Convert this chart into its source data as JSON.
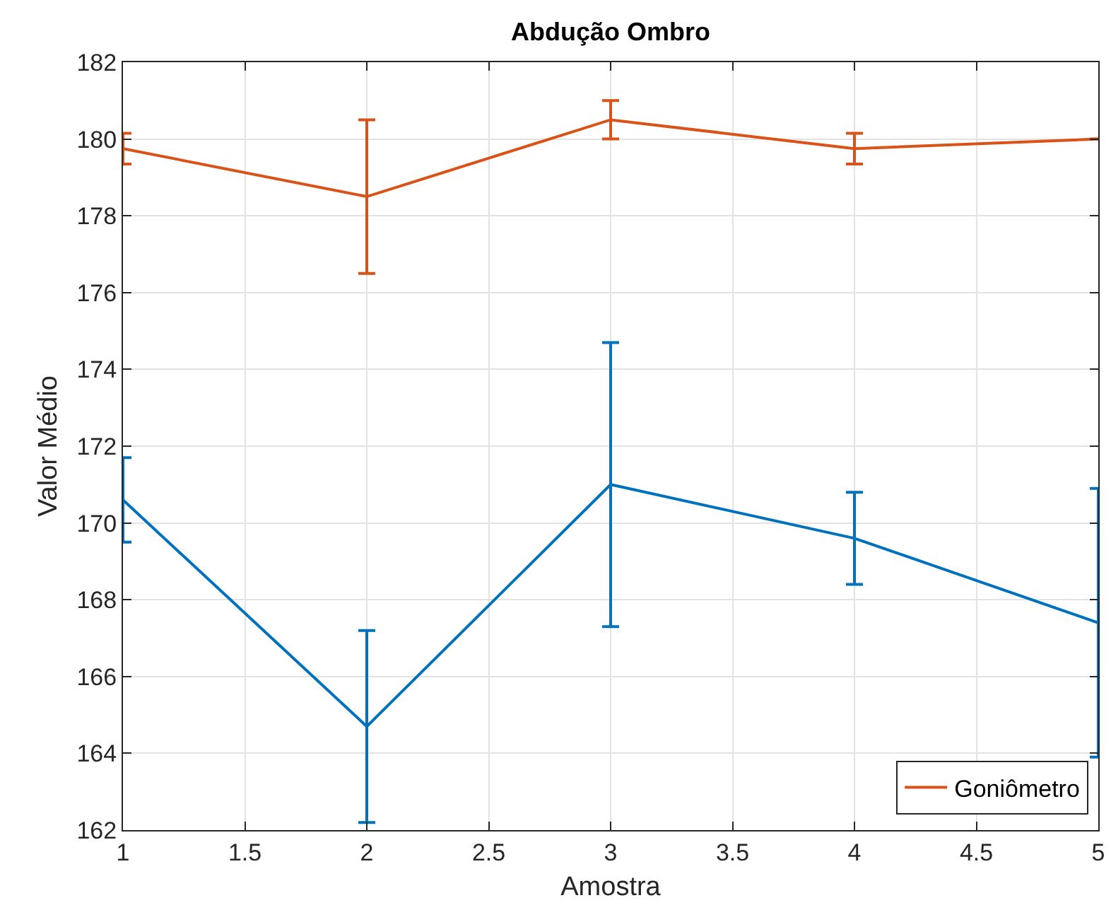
{
  "chart_data": {
    "type": "line",
    "title": "Abdução Ombro",
    "xlabel": "Amostra",
    "ylabel": "Valor Médio",
    "x": [
      1,
      2,
      3,
      4,
      5
    ],
    "series": [
      {
        "color": "#0072bd",
        "values": [
          170.6,
          164.7,
          171.0,
          169.6,
          167.4
        ],
        "errors": [
          1.1,
          2.5,
          3.7,
          1.2,
          3.5
        ]
      },
      {
        "name": "Goniômetro",
        "color": "#d95319",
        "values": [
          179.75,
          178.5,
          180.5,
          179.75,
          180
        ],
        "errors": [
          0.4,
          2.0,
          0.5,
          0.4,
          null
        ]
      }
    ],
    "xlim": [
      1,
      5
    ],
    "xticks": [
      1,
      1.5,
      2,
      2.5,
      3,
      3.5,
      4,
      4.5,
      5
    ],
    "ylim": [
      162,
      182
    ],
    "yticks": [
      162,
      164,
      166,
      168,
      170,
      172,
      174,
      176,
      178,
      180,
      182
    ],
    "grid": true,
    "legend": "bottom right",
    "marker": "none",
    "line_style": "solid"
  }
}
